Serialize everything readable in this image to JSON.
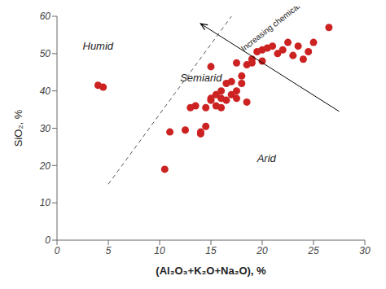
{
  "chart_data": {
    "type": "scatter",
    "xlabel": "(Al₂O₃+K₂O+Na₂O), %",
    "ylabel": "SiO₂, %",
    "xlim": [
      0,
      30
    ],
    "ylim": [
      0,
      60
    ],
    "xticks": [
      0,
      5,
      10,
      15,
      20,
      25,
      30
    ],
    "yticks": [
      0,
      10,
      20,
      30,
      40,
      50,
      60
    ],
    "grid": false,
    "series": [
      {
        "type": "scatter",
        "color": "#cc2222",
        "x": [
          4.0,
          4.5,
          10.5,
          11.0,
          12.5,
          13.0,
          13.5,
          14.0,
          14.0,
          14.5,
          14.5,
          15.0,
          15.0,
          15.0,
          15.5,
          15.5,
          16.0,
          16.0,
          16.0,
          16.5,
          16.5,
          17.0,
          17.0,
          17.5,
          17.5,
          17.5,
          18.0,
          18.0,
          18.5,
          18.5,
          19.0,
          19.0,
          19.5,
          20.0,
          20.0,
          20.5,
          21.0,
          21.5,
          22.0,
          22.5,
          23.0,
          23.5,
          24.0,
          24.5,
          25.0,
          26.5
        ],
        "values": [
          41.5,
          41.0,
          19.0,
          29.0,
          29.5,
          35.5,
          36.0,
          28.5,
          29.0,
          30.5,
          35.5,
          37.5,
          38.0,
          46.5,
          36.0,
          39.0,
          35.5,
          38.0,
          40.0,
          37.5,
          42.0,
          39.0,
          42.5,
          38.0,
          40.0,
          47.5,
          42.0,
          44.0,
          37.0,
          47.0,
          47.5,
          48.5,
          50.5,
          48.0,
          51.0,
          51.5,
          52.0,
          50.0,
          51.0,
          53.0,
          49.5,
          52.0,
          48.5,
          50.5,
          53.0,
          57.0
        ]
      },
      {
        "type": "line",
        "line_style": "dashed",
        "color": "#555555",
        "x": [
          5,
          17
        ],
        "values": [
          15,
          60
        ]
      },
      {
        "type": "line",
        "line_style": "solid",
        "marker": "arrow",
        "color": "#000000",
        "x": [
          14.0,
          27.5
        ],
        "values": [
          58.0,
          34.5
        ],
        "annotation": {
          "text": "Increasing chemical maturity",
          "x": 18.2,
          "y": 50.5
        }
      }
    ],
    "annotations": [
      {
        "text": "Humid",
        "x": 2.5,
        "y": 52
      },
      {
        "text": "Semiarid",
        "x": 12.0,
        "y": 43.5
      },
      {
        "text": "Arid",
        "x": 19.5,
        "y": 22
      }
    ]
  }
}
